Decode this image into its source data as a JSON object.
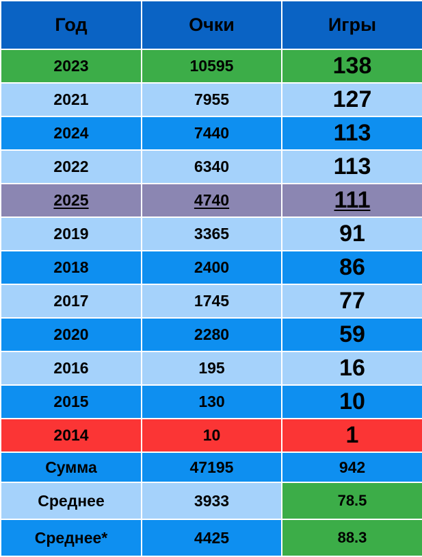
{
  "headers": {
    "year": "Год",
    "points": "Очки",
    "games": "Игры"
  },
  "rows": [
    {
      "year": "2023",
      "points": "10595",
      "games": "138"
    },
    {
      "year": "2021",
      "points": "7955",
      "games": "127"
    },
    {
      "year": "2024",
      "points": "7440",
      "games": "113"
    },
    {
      "year": "2022",
      "points": "6340",
      "games": "113"
    },
    {
      "year": "2025",
      "points": "4740",
      "games": "111"
    },
    {
      "year": "2019",
      "points": "3365",
      "games": "91"
    },
    {
      "year": "2018",
      "points": "2400",
      "games": "86"
    },
    {
      "year": "2017",
      "points": "1745",
      "games": "77"
    },
    {
      "year": "2020",
      "points": "2280",
      "games": "59"
    },
    {
      "year": "2016",
      "points": "195",
      "games": "16"
    },
    {
      "year": "2015",
      "points": "130",
      "games": "10"
    },
    {
      "year": "2014",
      "points": "10",
      "games": "1"
    }
  ],
  "summary": {
    "label": "Сумма",
    "points": "47195",
    "games": "942"
  },
  "average": {
    "label": "Среднее",
    "points": "3933",
    "games": "78.5"
  },
  "average_star": {
    "label": "Среднее*",
    "points": "4425",
    "games": "88.3"
  },
  "colors": {
    "header": "#0a63c4",
    "green": "#3cad48",
    "light_blue": "#a5d2fb",
    "blue": "#0e8ff0",
    "purple": "#8b86b2",
    "red": "#fb3535"
  }
}
